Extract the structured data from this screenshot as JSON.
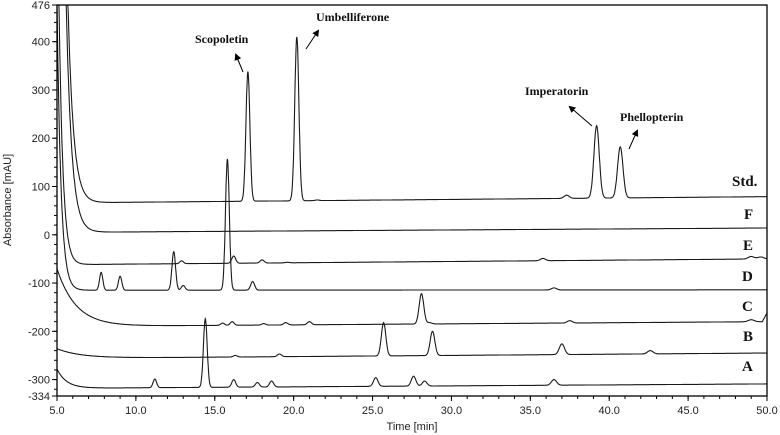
{
  "chart_data": {
    "type": "line",
    "xlabel": "Time [min]",
    "ylabel": "Absorbance [mAU]",
    "xlim": [
      5.0,
      50.0
    ],
    "ylim": [
      -334,
      476
    ],
    "x_ticks": [
      "5.0",
      "10.0",
      "15.0",
      "20.0",
      "25.0",
      "30.0",
      "35.0",
      "40.0",
      "45.0",
      "50.0"
    ],
    "y_ticks": [
      "476",
      "400",
      "300",
      "200",
      "100",
      "0",
      "-100",
      "-200",
      "-300",
      "-334"
    ],
    "grid": false,
    "series": [
      {
        "name": "Std.",
        "baseline": [
          66,
          79
        ],
        "peaks": [
          [
            17.1,
            338
          ],
          [
            20.2,
            410
          ],
          [
            39.2,
            226
          ],
          [
            40.7,
            182
          ],
          [
            19.2,
            70
          ],
          [
            21.5,
            72
          ],
          [
            37.3,
            82
          ]
        ]
      },
      {
        "name": "F",
        "baseline": [
          5,
          14
        ],
        "peaks": []
      },
      {
        "name": "E",
        "baseline": [
          -62,
          -50
        ],
        "peaks": [
          [
            12.9,
            -54
          ],
          [
            16.2,
            -44
          ],
          [
            18.0,
            -52
          ],
          [
            19.6,
            -57
          ],
          [
            35.8,
            -49
          ],
          [
            49.0,
            -45
          ],
          [
            49.6,
            -46
          ]
        ]
      },
      {
        "name": "D",
        "baseline": [
          -115,
          -114
        ],
        "peaks": [
          [
            7.8,
            -78
          ],
          [
            9.0,
            -86
          ],
          [
            12.4,
            -35
          ],
          [
            15.8,
            157
          ],
          [
            17.4,
            -97
          ],
          [
            13.0,
            -105
          ],
          [
            36.5,
            -110
          ]
        ]
      },
      {
        "name": "C",
        "baseline": [
          -190,
          -180
        ],
        "peaks": [
          [
            28.1,
            -122
          ],
          [
            15.5,
            -183
          ],
          [
            16.1,
            -180
          ],
          [
            18.1,
            -184
          ],
          [
            19.5,
            -182
          ],
          [
            21.0,
            -180
          ],
          [
            28.6,
            -182
          ],
          [
            37.5,
            -178
          ],
          [
            49.0,
            -176
          ]
        ]
      },
      {
        "name": "B",
        "baseline": [
          -256,
          -245
        ],
        "peaks": [
          [
            25.7,
            -182
          ],
          [
            28.8,
            -200
          ],
          [
            37.0,
            -226
          ],
          [
            16.3,
            -250
          ],
          [
            19.1,
            -247
          ],
          [
            42.6,
            -240
          ]
        ]
      },
      {
        "name": "A",
        "baseline": [
          -318,
          -309
        ],
        "peaks": [
          [
            11.2,
            -299
          ],
          [
            14.4,
            -174
          ],
          [
            16.2,
            -300
          ],
          [
            17.7,
            -306
          ],
          [
            18.6,
            -303
          ],
          [
            25.2,
            -296
          ],
          [
            27.6,
            -293
          ],
          [
            28.3,
            -303
          ],
          [
            36.5,
            -300
          ]
        ]
      }
    ],
    "annotations": [
      {
        "label": "Scopoletin",
        "target_time": 17.1
      },
      {
        "label": "Umbelliferone",
        "target_time": 20.2
      },
      {
        "label": "Imperatorin",
        "target_time": 39.2
      },
      {
        "label": "Phellopterin",
        "target_time": 40.7
      }
    ]
  }
}
